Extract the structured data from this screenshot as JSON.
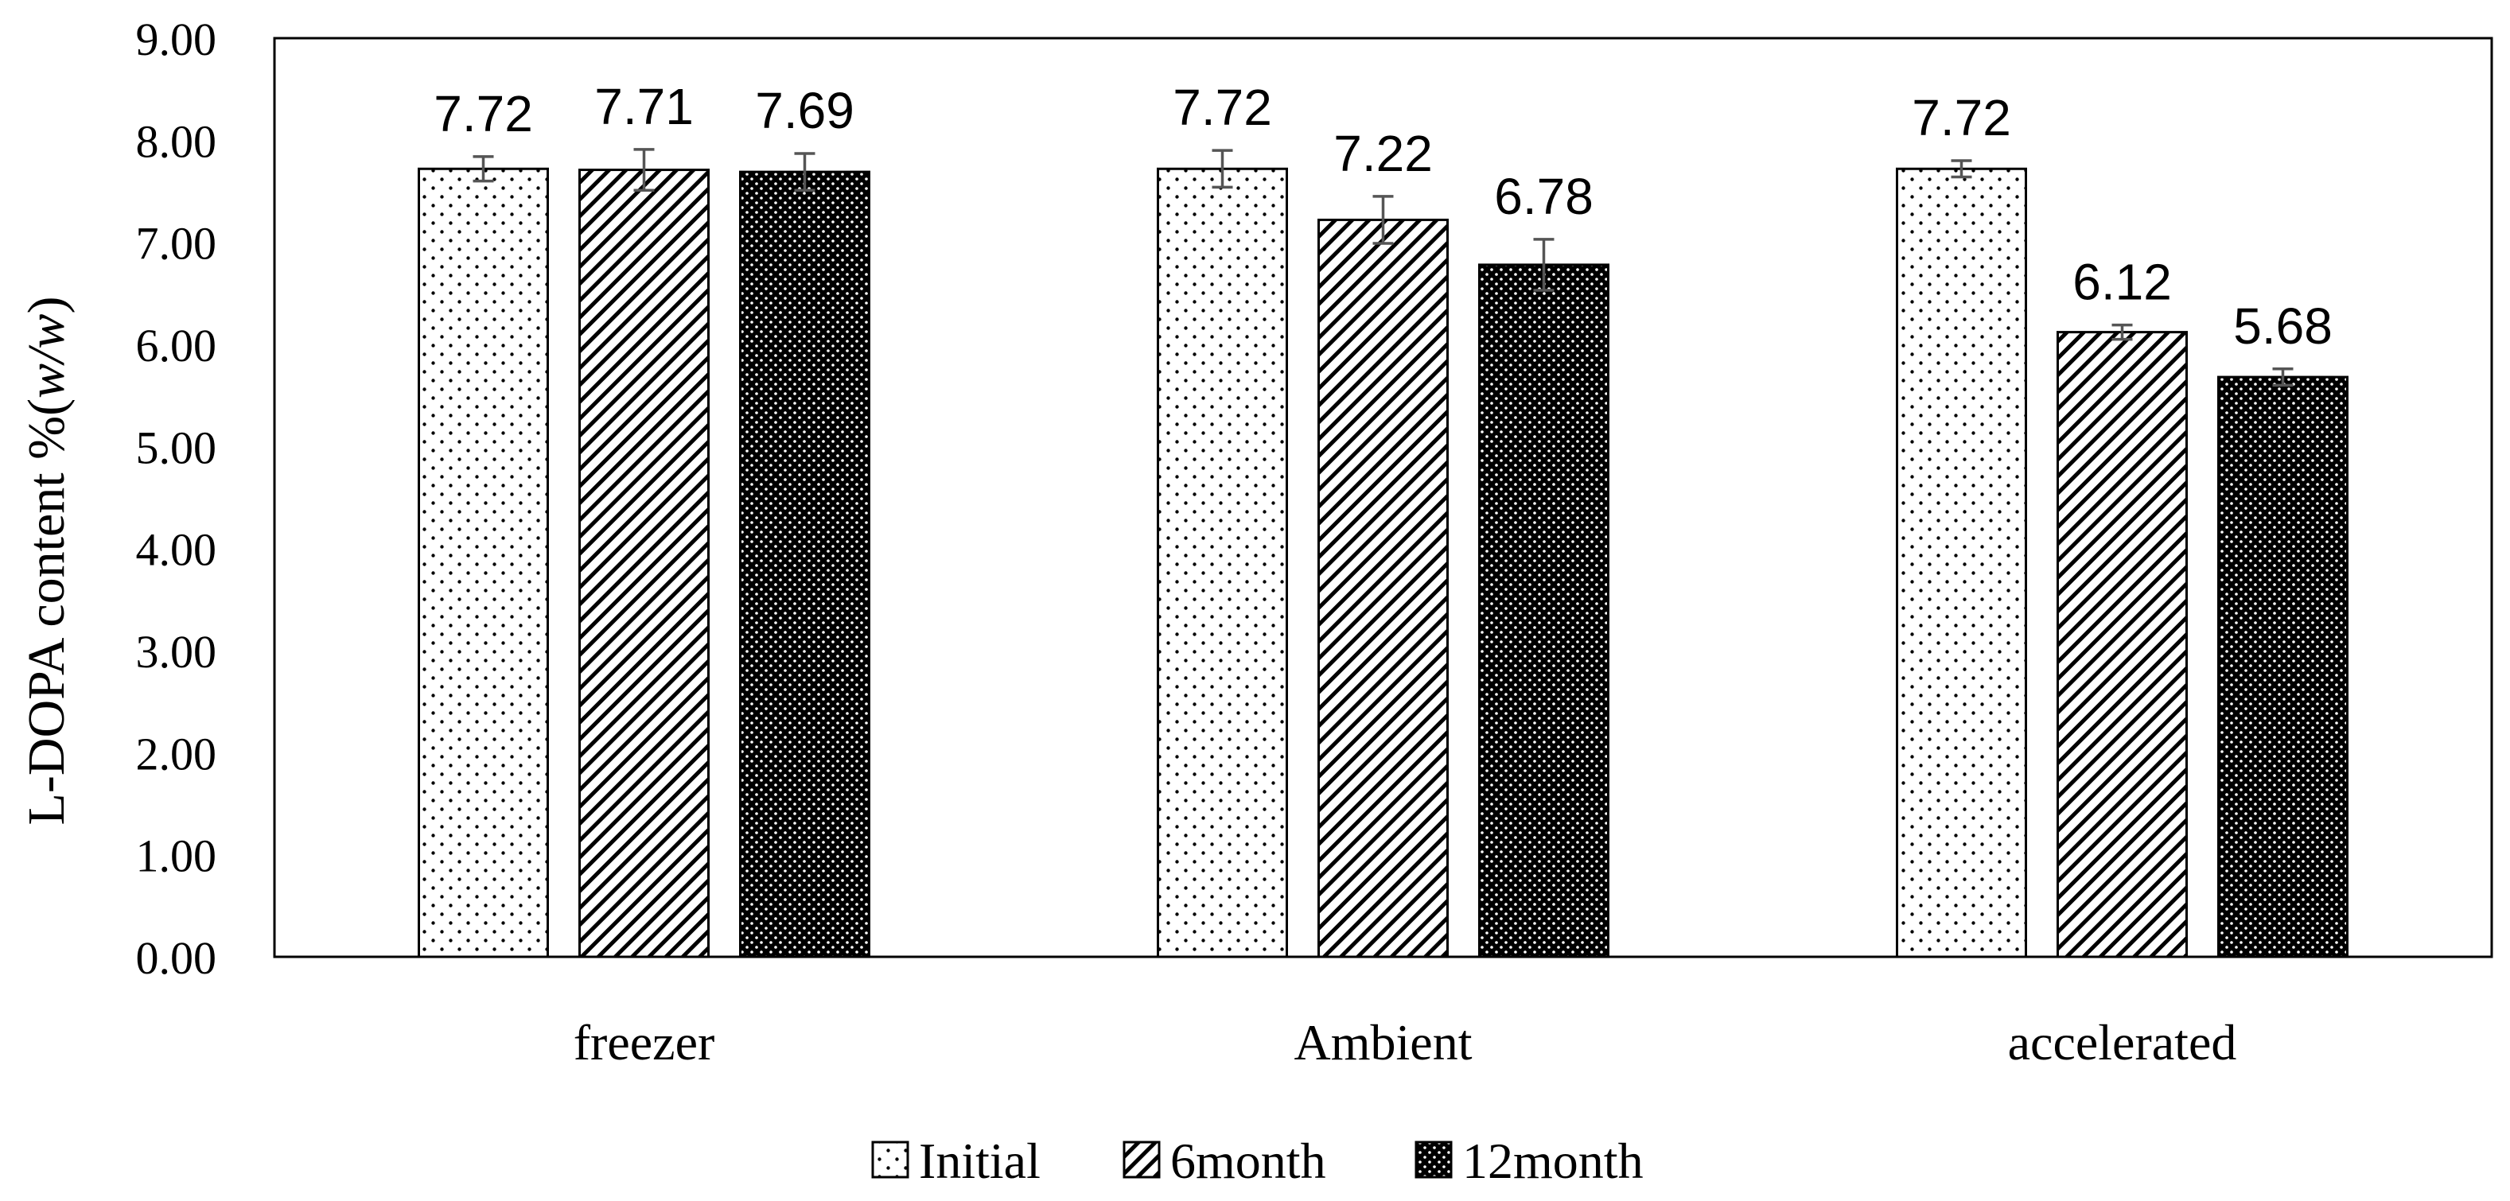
{
  "chart_data": {
    "type": "bar",
    "title": "",
    "xlabel": "",
    "ylabel": "L-DOPA content %(w/w)",
    "ylabel_parts": [
      "L-DOPA content %(",
      "w/w",
      ")"
    ],
    "categories": [
      "freezer",
      "Ambient",
      "accelerated"
    ],
    "series": [
      {
        "name": "Initial",
        "pattern": "dots",
        "values": [
          7.72,
          7.72,
          7.72
        ],
        "labels": [
          "7.72",
          "7.72",
          "7.72"
        ],
        "errors": [
          0.12,
          0.18,
          0.08
        ]
      },
      {
        "name": "6month",
        "pattern": "diagonal-hatch",
        "values": [
          7.71,
          7.22,
          6.12
        ],
        "labels": [
          "7.71",
          "7.22",
          "6.12"
        ],
        "errors": [
          0.2,
          0.23,
          0.07
        ]
      },
      {
        "name": "12month",
        "pattern": "dense-dark-dots",
        "values": [
          7.69,
          6.78,
          5.68
        ],
        "labels": [
          "7.69",
          "6.78",
          "5.68"
        ],
        "errors": [
          0.18,
          0.25,
          0.08
        ]
      }
    ],
    "ylim": [
      0,
      9
    ],
    "yticks": [
      "0.00",
      "1.00",
      "2.00",
      "3.00",
      "4.00",
      "5.00",
      "6.00",
      "7.00",
      "8.00",
      "9.00"
    ],
    "legend_position": "bottom-center",
    "grid": false
  }
}
